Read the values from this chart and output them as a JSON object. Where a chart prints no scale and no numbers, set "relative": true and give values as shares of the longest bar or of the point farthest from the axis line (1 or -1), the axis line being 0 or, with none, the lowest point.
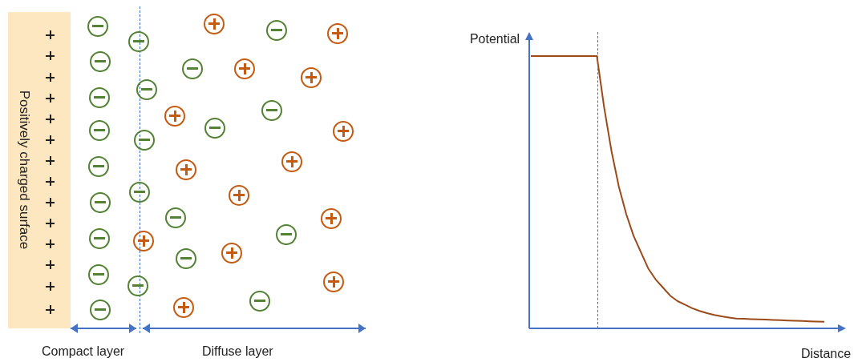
{
  "chart_data": [
    {
      "type": "other",
      "annotations": [
        "Positively charged surface",
        "Compact layer",
        "Diffuse layer"
      ]
    },
    {
      "type": "line",
      "relative": true,
      "xlabel": "Distance",
      "ylabel": "Potential",
      "legend": false,
      "marker": "none",
      "line_style": "solid",
      "categories": [
        null,
        null,
        null,
        null,
        null,
        null,
        null,
        null,
        null,
        null,
        null,
        null,
        null,
        null,
        null,
        null,
        null,
        null,
        null,
        null,
        null,
        null,
        null,
        null,
        null,
        null,
        null,
        null,
        null,
        null,
        null,
        null,
        null,
        null,
        null,
        null,
        null,
        null,
        null,
        null,
        null
      ],
      "series": [
        {
          "color": "#9c4a1a",
          "values": [
            1,
            1,
            1,
            1,
            1,
            1,
            1,
            1,
            1,
            1,
            0.81,
            0.65,
            0.52,
            0.42,
            0.34,
            0.28,
            0.22,
            0.18,
            0.15,
            0.12,
            0.1,
            0.087,
            0.074,
            0.064,
            0.056,
            0.049,
            0.044,
            0.04,
            0.036,
            0.035,
            0.034,
            0.033,
            0.032,
            0.031,
            0.03,
            0.029,
            0.028,
            0.027,
            0.026,
            0.025,
            0.024
          ]
        }
      ]
    }
  ]
}
